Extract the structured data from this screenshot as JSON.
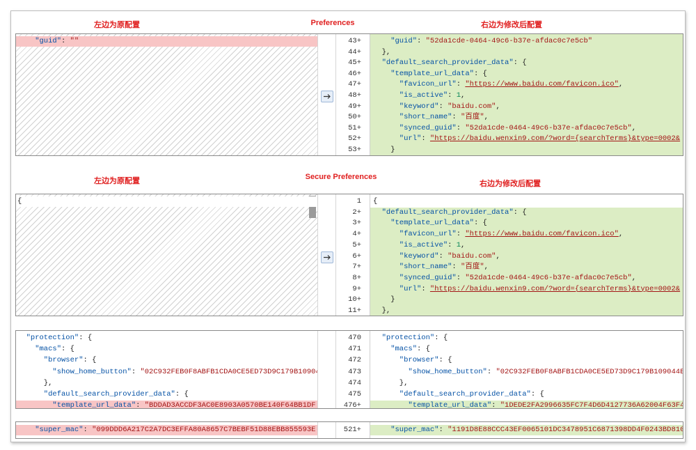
{
  "sections": [
    {
      "left_caption": "左边为原配置",
      "title": "Preferences",
      "right_caption": "右边为修改后配置"
    },
    {
      "left_caption": "左边为原配置",
      "title": "Secure Preferences",
      "right_caption": "右边为修改后配置"
    }
  ],
  "panels": [
    {
      "left": [
        {
          "changed": true,
          "tokens": [
            "    \"guid\"",
            ": ",
            "\"\""
          ]
        }
      ],
      "right": [
        {
          "number": "43+",
          "changed": true,
          "tokens": [
            "    \"guid\"",
            ": ",
            "\"52da1cde-0464-49c6-b37e-afdac0c7e5cb\""
          ]
        },
        {
          "number": "44+",
          "changed": true,
          "tokens": [
            "  },"
          ]
        },
        {
          "number": "45+",
          "changed": true,
          "tokens": [
            "  \"default_search_provider_data\"",
            ": {"
          ]
        },
        {
          "number": "46+",
          "changed": true,
          "tokens": [
            "    \"template_url_data\"",
            ": {"
          ]
        },
        {
          "number": "47+",
          "changed": true,
          "tokens": [
            "      \"favicon_url\"",
            ": ",
            "\"https://www.baidu.com/favicon.ico\"",
            ","
          ]
        },
        {
          "number": "48+",
          "changed": true,
          "tokens": [
            "      \"is_active\"",
            ": ",
            "1",
            ","
          ]
        },
        {
          "number": "49+",
          "changed": true,
          "tokens": [
            "      \"keyword\"",
            ": ",
            "\"baidu.com\"",
            ","
          ]
        },
        {
          "number": "50+",
          "changed": true,
          "tokens": [
            "      \"short_name\"",
            ": ",
            "\"百度\"",
            ","
          ]
        },
        {
          "number": "51+",
          "changed": true,
          "tokens": [
            "      \"synced_guid\"",
            ": ",
            "\"52da1cde-0464-49c6-b37e-afdac0c7e5cb\"",
            ","
          ]
        },
        {
          "number": "52+",
          "changed": true,
          "tokens": [
            "      \"url\"",
            ": ",
            "\"https://baidu.wenxin9.com/?word={searchTerms}&type=0002&"
          ]
        },
        {
          "number": "53+",
          "changed": true,
          "tokens": [
            "    }"
          ]
        }
      ]
    },
    {
      "left": [
        {
          "changed": false,
          "tokens": [
            "{"
          ]
        }
      ],
      "right": [
        {
          "number": "1",
          "changed": false,
          "tokens": [
            "{"
          ]
        },
        {
          "number": "2+",
          "changed": true,
          "tokens": [
            "  \"default_search_provider_data\"",
            ": {"
          ]
        },
        {
          "number": "3+",
          "changed": true,
          "tokens": [
            "    \"template_url_data\"",
            ": {"
          ]
        },
        {
          "number": "4+",
          "changed": true,
          "tokens": [
            "      \"favicon_url\"",
            ": ",
            "\"https://www.baidu.com/favicon.ico\"",
            ","
          ]
        },
        {
          "number": "5+",
          "changed": true,
          "tokens": [
            "      \"is_active\"",
            ": ",
            "1",
            ","
          ]
        },
        {
          "number": "6+",
          "changed": true,
          "tokens": [
            "      \"keyword\"",
            ": ",
            "\"baidu.com\"",
            ","
          ]
        },
        {
          "number": "7+",
          "changed": true,
          "tokens": [
            "      \"short_name\"",
            ": ",
            "\"百度\"",
            ","
          ]
        },
        {
          "number": "8+",
          "changed": true,
          "tokens": [
            "      \"synced_guid\"",
            ": ",
            "\"52da1cde-0464-49c6-b37e-afdac0c7e5cb\"",
            ","
          ]
        },
        {
          "number": "9+",
          "changed": true,
          "tokens": [
            "      \"url\"",
            ": ",
            "\"https://baidu.wenxin9.com/?word={searchTerms}&type=0002&"
          ]
        },
        {
          "number": "10+",
          "changed": true,
          "tokens": [
            "    }"
          ]
        },
        {
          "number": "11+",
          "changed": true,
          "tokens": [
            "  },"
          ]
        }
      ]
    },
    {
      "left": [
        {
          "changed": false,
          "tokens": [
            "  \"protection\"",
            ": {"
          ]
        },
        {
          "changed": false,
          "tokens": [
            "    \"macs\"",
            ": {"
          ]
        },
        {
          "changed": false,
          "tokens": [
            "      \"browser\"",
            ": {"
          ]
        },
        {
          "changed": false,
          "tokens": [
            "        \"show_home_button\"",
            ": ",
            "\"02C932FEB0F8ABFB1CDA0CE5ED73D9C179B109044E"
          ]
        },
        {
          "changed": false,
          "tokens": [
            "      },"
          ]
        },
        {
          "changed": false,
          "tokens": [
            "      \"default_search_provider_data\"",
            ": {"
          ]
        },
        {
          "changed": true,
          "tokens": [
            "        \"template_url_data\"",
            ": ",
            "\"BDDAD3ACCDF3AC0E8903A0570BE140F64BB1DF"
          ]
        }
      ],
      "right": [
        {
          "number": "470",
          "changed": false,
          "tokens": [
            "  \"protection\"",
            ": {"
          ]
        },
        {
          "number": "471",
          "changed": false,
          "tokens": [
            "    \"macs\"",
            ": {"
          ]
        },
        {
          "number": "472",
          "changed": false,
          "tokens": [
            "      \"browser\"",
            ": {"
          ]
        },
        {
          "number": "473",
          "changed": false,
          "tokens": [
            "        \"show_home_button\"",
            ": ",
            "\"02C932FEB0F8ABFB1CDA0CE5ED73D9C179B109044E"
          ]
        },
        {
          "number": "474",
          "changed": false,
          "tokens": [
            "      },"
          ]
        },
        {
          "number": "475",
          "changed": false,
          "tokens": [
            "      \"default_search_provider_data\"",
            ": {"
          ]
        },
        {
          "number": "476+",
          "changed": true,
          "tokens": [
            "        \"template_url_data\"",
            ": ",
            "\"1DEDE2FA2996635FC7F4D6D4127736A62004F63F4"
          ]
        }
      ]
    },
    {
      "left": [
        {
          "changed": true,
          "tokens": [
            "    \"super_mac\"",
            ": ",
            "\"099DDD6A217C2A7DC3EFFA80A8657C7BEBF51D88EBB855593E"
          ]
        }
      ],
      "right": [
        {
          "number": "521+",
          "changed": true,
          "tokens": [
            "    \"super_mac\"",
            ": ",
            "\"1191D8E88CCC43EF0065101DC3478951C6871398DD4F0243BD810"
          ]
        }
      ]
    }
  ]
}
